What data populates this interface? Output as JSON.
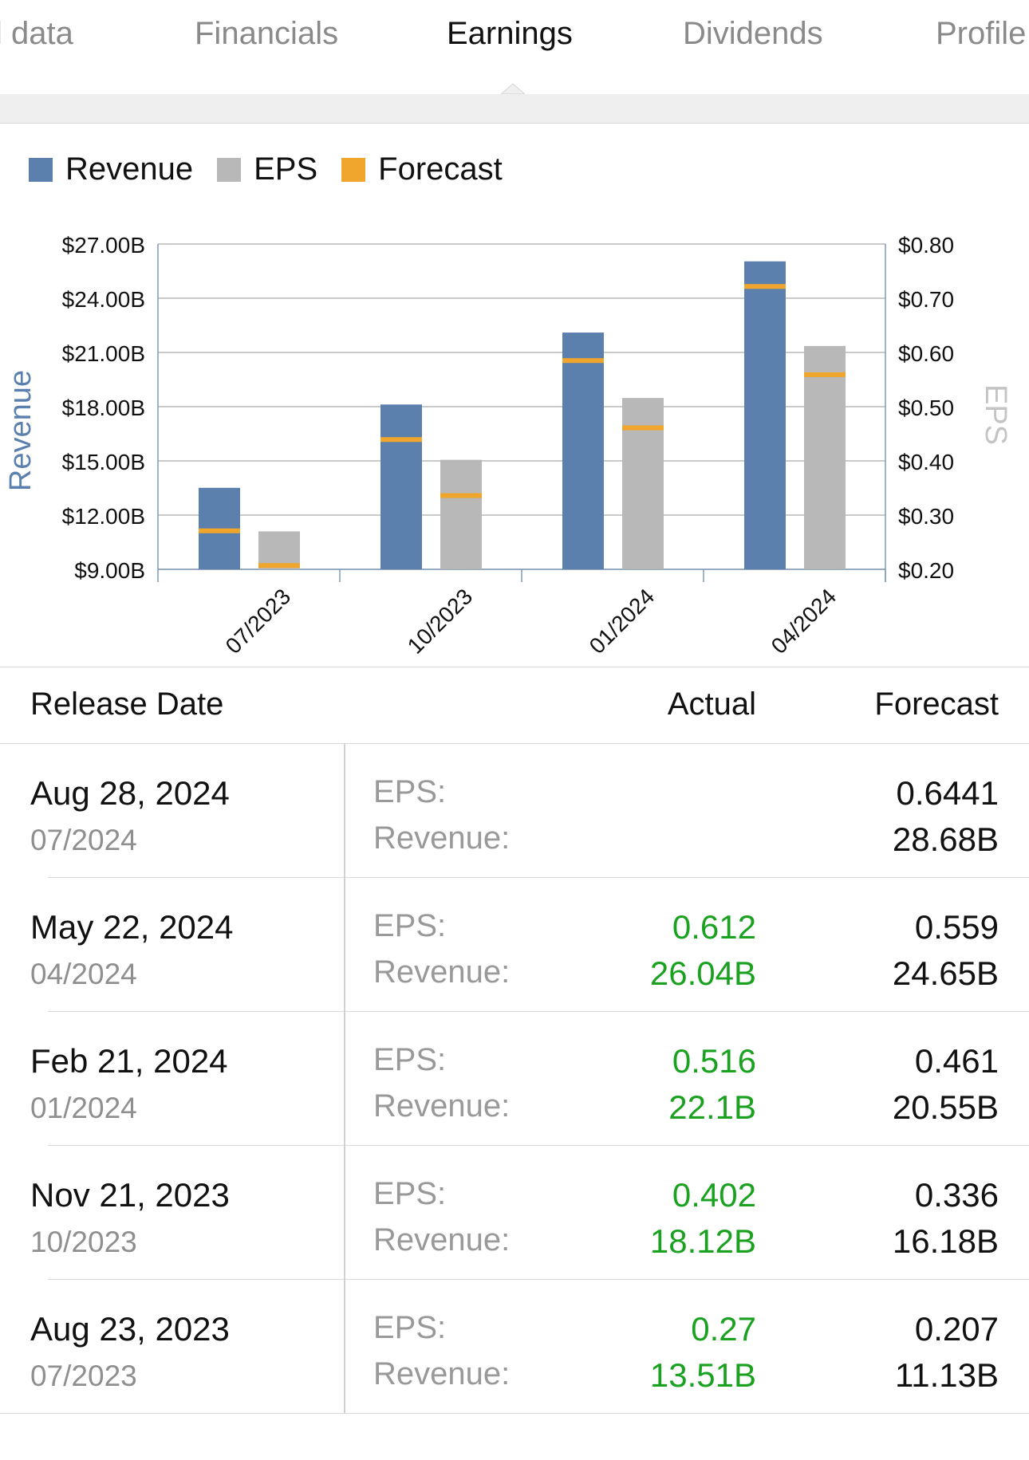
{
  "tabs": [
    {
      "label": "l data",
      "active": false
    },
    {
      "label": "Financials",
      "active": false
    },
    {
      "label": "Earnings",
      "active": true
    },
    {
      "label": "Dividends",
      "active": false
    },
    {
      "label": "Profile",
      "active": false
    }
  ],
  "legend": [
    {
      "label": "Revenue",
      "color": "#5b80ad"
    },
    {
      "label": "EPS",
      "color": "#b8b8b8"
    },
    {
      "label": "Forecast",
      "color": "#f0a52c"
    }
  ],
  "chart_data": {
    "type": "bar",
    "categories": [
      "07/2023",
      "10/2023",
      "01/2024",
      "04/2024"
    ],
    "series": [
      {
        "name": "Revenue",
        "axis": "left",
        "color": "#5b80ad",
        "values": [
          13.51,
          18.12,
          22.1,
          26.04
        ],
        "forecast": [
          11.13,
          16.18,
          20.55,
          24.65
        ]
      },
      {
        "name": "EPS",
        "axis": "right",
        "color": "#b8b8b8",
        "values": [
          0.27,
          0.402,
          0.516,
          0.612
        ],
        "forecast": [
          0.207,
          0.336,
          0.461,
          0.559
        ]
      }
    ],
    "forecast_color": "#f0a52c",
    "left_axis": {
      "label": "Revenue",
      "range": [
        9,
        27
      ],
      "ticks": [
        "$9.00B",
        "$12.00B",
        "$15.00B",
        "$18.00B",
        "$21.00B",
        "$24.00B",
        "$27.00B"
      ],
      "color": "#5b80ad"
    },
    "right_axis": {
      "label": "EPS",
      "range": [
        0.2,
        0.8
      ],
      "ticks": [
        "$0.20",
        "$0.30",
        "$0.40",
        "$0.50",
        "$0.60",
        "$0.70",
        "$0.80"
      ],
      "color": "#b8b8b8"
    },
    "grid": true
  },
  "table": {
    "headers": {
      "date": "Release Date",
      "actual": "Actual",
      "forecast": "Forecast"
    },
    "eps_label": "EPS:",
    "revenue_label": "Revenue:",
    "rows": [
      {
        "date": "Aug 28, 2024",
        "period": "07/2024",
        "actual_eps": "",
        "actual_revenue": "",
        "forecast_eps": "0.6441",
        "forecast_revenue": "28.68B"
      },
      {
        "date": "May 22, 2024",
        "period": "04/2024",
        "actual_eps": "0.612",
        "actual_revenue": "26.04B",
        "forecast_eps": "0.559",
        "forecast_revenue": "24.65B"
      },
      {
        "date": "Feb 21, 2024",
        "period": "01/2024",
        "actual_eps": "0.516",
        "actual_revenue": "22.1B",
        "forecast_eps": "0.461",
        "forecast_revenue": "20.55B"
      },
      {
        "date": "Nov 21, 2023",
        "period": "10/2023",
        "actual_eps": "0.402",
        "actual_revenue": "18.12B",
        "forecast_eps": "0.336",
        "forecast_revenue": "16.18B"
      },
      {
        "date": "Aug 23, 2023",
        "period": "07/2023",
        "actual_eps": "0.27",
        "actual_revenue": "13.51B",
        "forecast_eps": "0.207",
        "forecast_revenue": "11.13B"
      }
    ]
  }
}
